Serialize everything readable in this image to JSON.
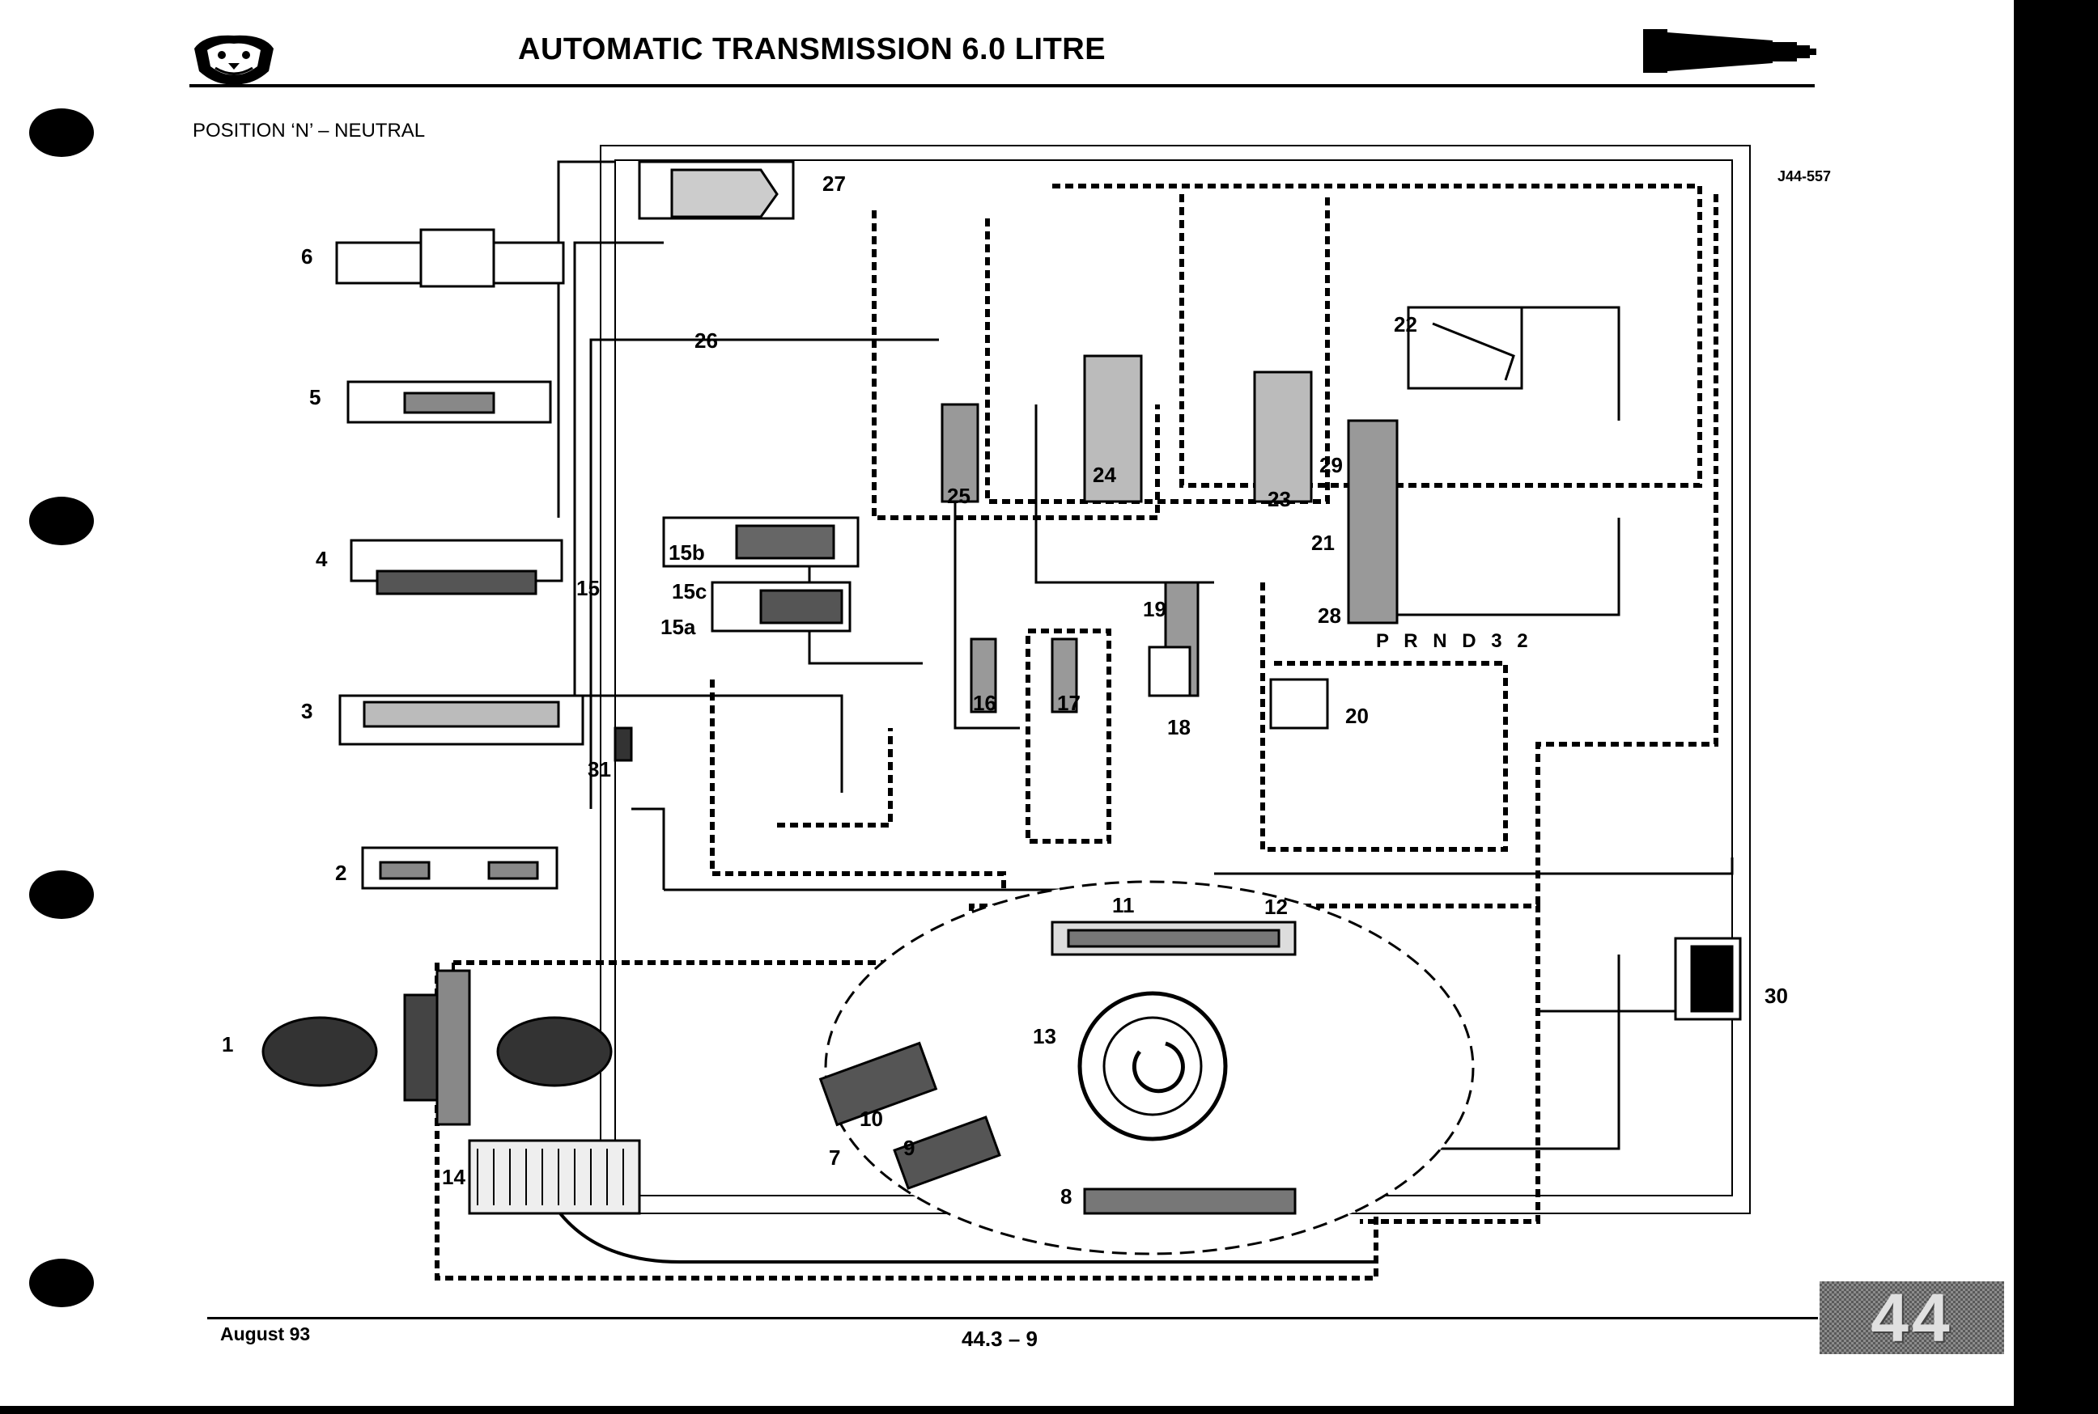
{
  "header": {
    "title": "AUTOMATIC TRANSMISSION 6.0 LITRE",
    "logo_icon": "jaguar-head-logo-icon",
    "section_icon": "transmission-icon"
  },
  "subtitle": "POSITION ‘N’ – NEUTRAL",
  "diagram": {
    "reference": "J44-557",
    "gear_positions": "P R N D 3 2",
    "callouts": [
      "1",
      "2",
      "3",
      "4",
      "5",
      "6",
      "7",
      "8",
      "9",
      "10",
      "11",
      "12",
      "13",
      "14",
      "15",
      "15a",
      "15b",
      "15c",
      "16",
      "17",
      "18",
      "19",
      "20",
      "21",
      "22",
      "23",
      "24",
      "25",
      "26",
      "27",
      "28",
      "29",
      "30",
      "31"
    ]
  },
  "footer": {
    "date": "August 93",
    "page": "44.3 – 9",
    "section_tab": "44"
  },
  "colors": {
    "ink": "#000000",
    "paper": "#ffffff",
    "tab_grey": "#8c8c8c"
  }
}
